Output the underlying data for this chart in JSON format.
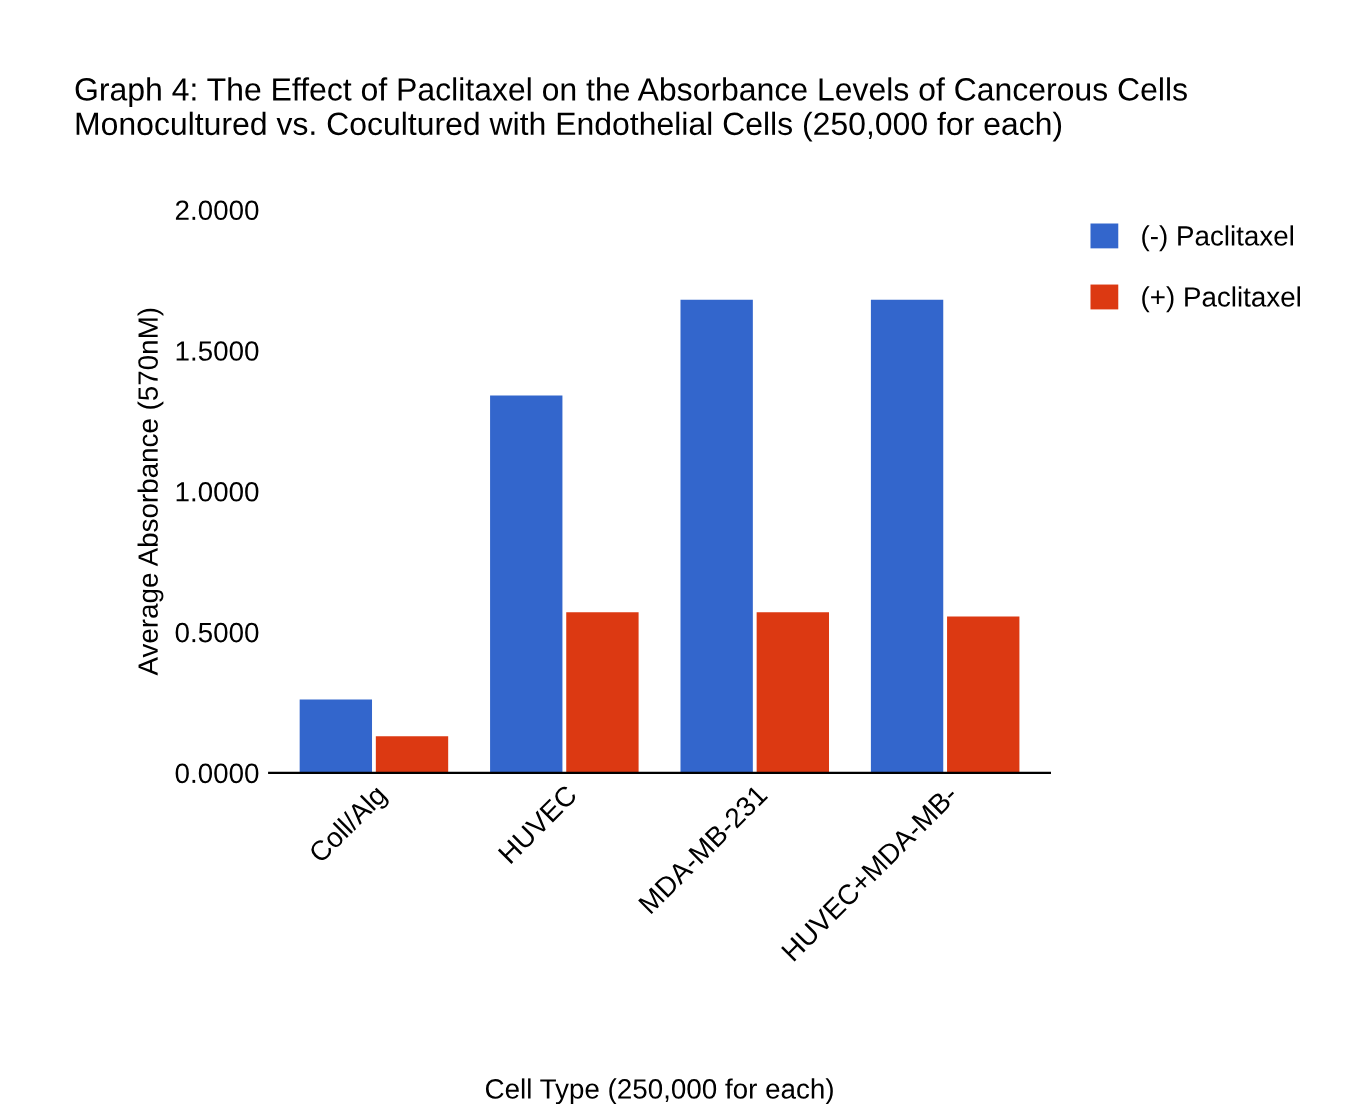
{
  "chart_data": {
    "type": "bar",
    "title": "Graph 4: The Effect of Paclitaxel on the Absorbance Levels of Cancerous Cells\nMonocultured vs. Cocultured with Endothelial Cells (250,000 for each)",
    "xlabel": "Cell Type (250,000 for each)",
    "ylabel": "Average Absorbance (570nM)",
    "categories": [
      "Coll/Alg",
      "HUVEC",
      "MDA-MB-231",
      "HUVEC+MDA-MB-"
    ],
    "series": [
      {
        "name": "(-) Paclitaxel",
        "color": "#3366cc",
        "values": [
          0.26,
          1.34,
          1.68,
          1.68
        ]
      },
      {
        "name": "(+) Paclitaxel",
        "color": "#dc3912",
        "values": [
          0.13,
          0.57,
          0.57,
          0.555
        ]
      }
    ],
    "ylim": [
      0,
      2
    ],
    "yticks": [
      {
        "value": 0,
        "label": "0.0000"
      },
      {
        "value": 0.5,
        "label": "0.5000"
      },
      {
        "value": 1,
        "label": "1.0000"
      },
      {
        "value": 1.5,
        "label": "1.5000"
      },
      {
        "value": 2,
        "label": "2.0000"
      }
    ],
    "grid": false,
    "legend": "top right"
  }
}
